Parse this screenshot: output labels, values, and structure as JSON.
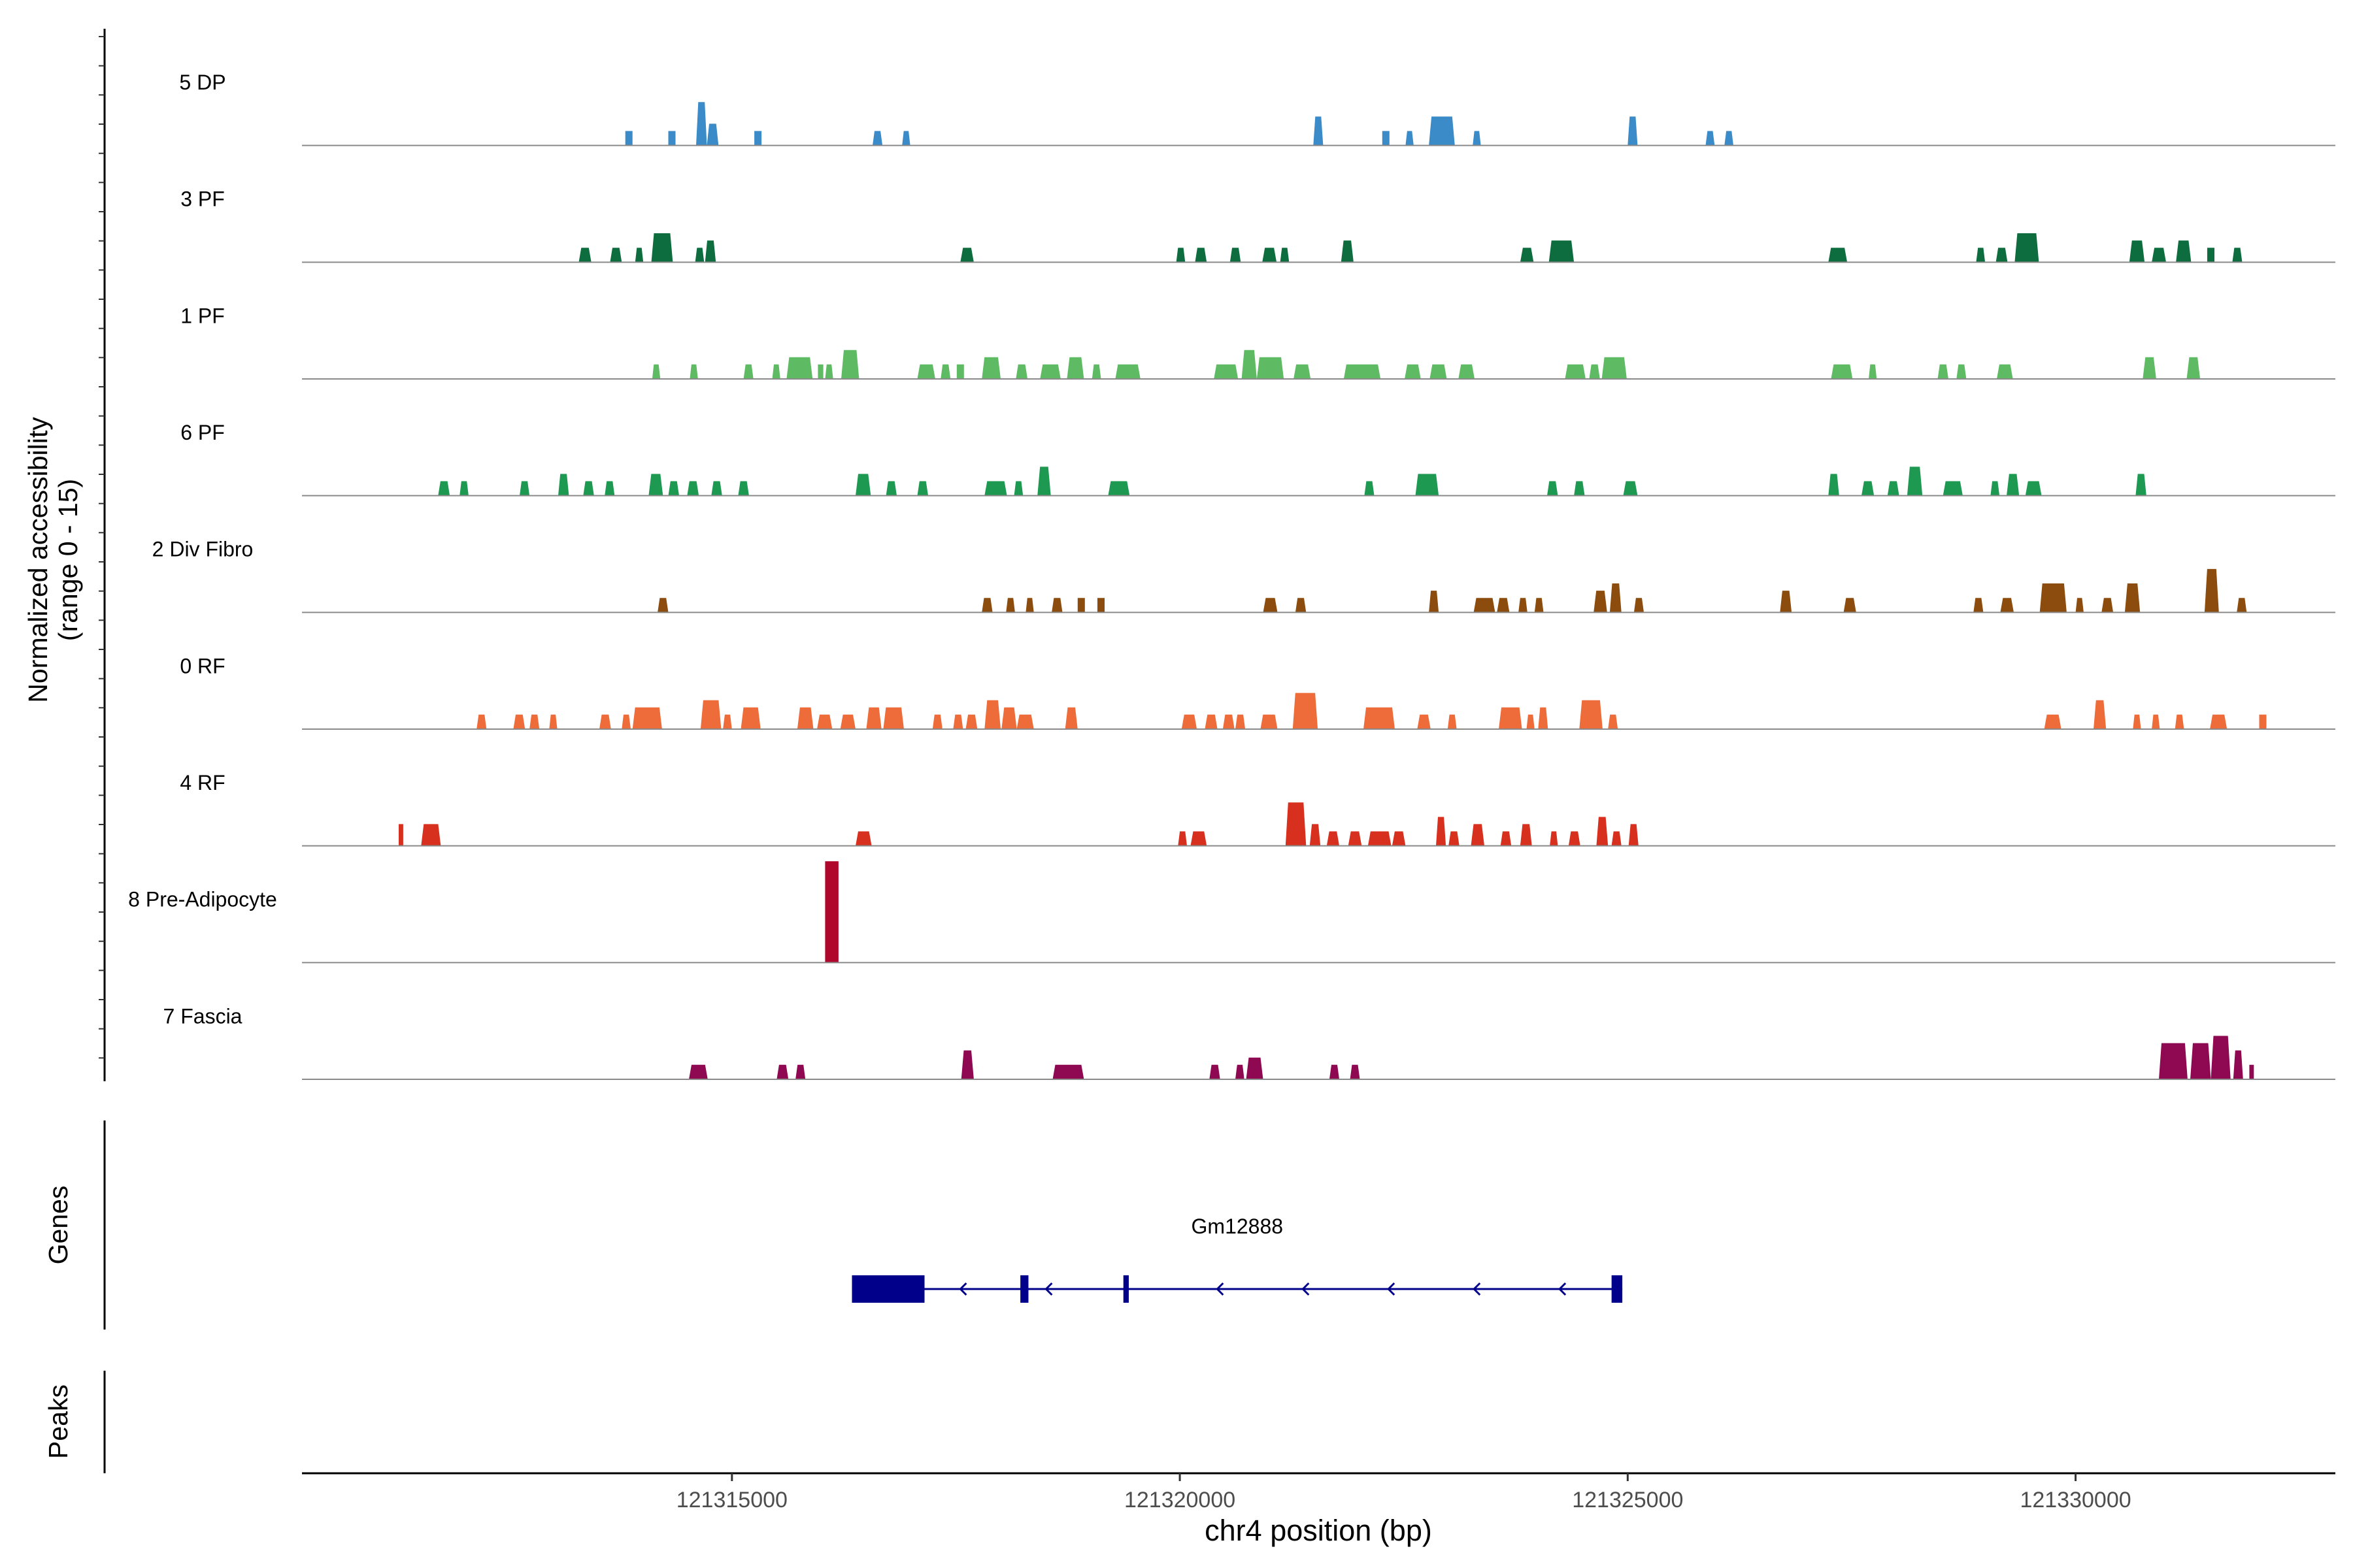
{
  "chart_data": {
    "type": "area",
    "title": "",
    "ylabel_line1": "Normalized accessibility",
    "ylabel_line2": "(range 0 - 15)",
    "xlabel": "chr4 position (bp)",
    "xlim": [
      121310200,
      121332900
    ],
    "ylim": [
      0,
      15
    ],
    "x_ticks": [
      121315000,
      121320000,
      121325000,
      121330000
    ],
    "x_tick_labels": [
      "121315000",
      "121320000",
      "121325000",
      "121330000"
    ],
    "series": [
      {
        "name": "5 DP",
        "color": "#3A8BC8",
        "peaks": [
          [
            121313810,
            121313890,
            2
          ],
          [
            121314290,
            121314370,
            2
          ],
          [
            121314600,
            121314720,
            6
          ],
          [
            121314720,
            121314850,
            3
          ],
          [
            121315250,
            121315330,
            2
          ],
          [
            121316570,
            121316680,
            2
          ],
          [
            121316900,
            121316990,
            2
          ],
          [
            121321490,
            121321600,
            4
          ],
          [
            121322260,
            121322340,
            2
          ],
          [
            121322520,
            121322610,
            2
          ],
          [
            121322780,
            121323070,
            4
          ],
          [
            121323270,
            121323360,
            2
          ],
          [
            121325000,
            121325110,
            4
          ],
          [
            121325870,
            121325970,
            2
          ],
          [
            121326080,
            121326180,
            2
          ]
        ]
      },
      {
        "name": "3 PF",
        "color": "#0E6D3E",
        "peaks": [
          [
            121313290,
            121313430,
            2
          ],
          [
            121313640,
            121313770,
            2
          ],
          [
            121313920,
            121314010,
            2
          ],
          [
            121314100,
            121314340,
            4
          ],
          [
            121314590,
            121314690,
            2
          ],
          [
            121314700,
            121314820,
            3
          ],
          [
            121317550,
            121317700,
            2
          ],
          [
            121319960,
            121320060,
            2
          ],
          [
            121320170,
            121320300,
            2
          ],
          [
            121320560,
            121320680,
            2
          ],
          [
            121320920,
            121321080,
            2
          ],
          [
            121321120,
            121321220,
            2
          ],
          [
            121321800,
            121321940,
            3
          ],
          [
            121323800,
            121323950,
            2
          ],
          [
            121324120,
            121324400,
            3
          ],
          [
            121327240,
            121327450,
            2
          ],
          [
            121328890,
            121328990,
            2
          ],
          [
            121329110,
            121329240,
            2
          ],
          [
            121329320,
            121329590,
            4
          ],
          [
            121330600,
            121330770,
            3
          ],
          [
            121330850,
            121331010,
            2
          ],
          [
            121331120,
            121331290,
            3
          ],
          [
            121331470,
            121331550,
            2
          ],
          [
            121331750,
            121331860,
            2
          ]
        ]
      },
      {
        "name": "1 PF",
        "color": "#5EBB63",
        "peaks": [
          [
            121314110,
            121314200,
            2
          ],
          [
            121314530,
            121314620,
            2
          ],
          [
            121315130,
            121315240,
            2
          ],
          [
            121315450,
            121315540,
            2
          ],
          [
            121315610,
            121315900,
            3
          ],
          [
            121315960,
            121316020,
            2
          ],
          [
            121316040,
            121316130,
            2
          ],
          [
            121316220,
            121316420,
            4
          ],
          [
            121317070,
            121317270,
            2
          ],
          [
            121317330,
            121317440,
            2
          ],
          [
            121317510,
            121317590,
            2
          ],
          [
            121317790,
            121318000,
            3
          ],
          [
            121318170,
            121318300,
            2
          ],
          [
            121318440,
            121318670,
            2
          ],
          [
            121318740,
            121318930,
            3
          ],
          [
            121319020,
            121319120,
            2
          ],
          [
            121319280,
            121319560,
            2
          ],
          [
            121320380,
            121320650,
            2
          ],
          [
            121320690,
            121320860,
            4
          ],
          [
            121320860,
            121321160,
            3
          ],
          [
            121321270,
            121321460,
            2
          ],
          [
            121321830,
            121322240,
            2
          ],
          [
            121322510,
            121322690,
            2
          ],
          [
            121322790,
            121322980,
            2
          ],
          [
            121323110,
            121323290,
            2
          ],
          [
            121324300,
            121324530,
            2
          ],
          [
            121324570,
            121324690,
            2
          ],
          [
            121324710,
            121324990,
            3
          ],
          [
            121327270,
            121327510,
            2
          ],
          [
            121327690,
            121327780,
            2
          ],
          [
            121328460,
            121328580,
            2
          ],
          [
            121328670,
            121328780,
            2
          ],
          [
            121329120,
            121329300,
            2
          ],
          [
            121330750,
            121330900,
            3
          ],
          [
            121331240,
            121331390,
            3
          ]
        ]
      },
      {
        "name": "6 PF",
        "color": "#1E9952",
        "peaks": [
          [
            121311720,
            121311850,
            2
          ],
          [
            121311960,
            121312060,
            2
          ],
          [
            121312630,
            121312740,
            2
          ],
          [
            121313060,
            121313180,
            3
          ],
          [
            121313340,
            121313460,
            2
          ],
          [
            121313580,
            121313690,
            2
          ],
          [
            121314070,
            121314230,
            3
          ],
          [
            121314290,
            121314410,
            2
          ],
          [
            121314500,
            121314630,
            2
          ],
          [
            121314770,
            121314890,
            2
          ],
          [
            121315070,
            121315190,
            2
          ],
          [
            121316380,
            121316550,
            3
          ],
          [
            121316720,
            121316840,
            2
          ],
          [
            121317070,
            121317190,
            2
          ],
          [
            121317820,
            121318070,
            2
          ],
          [
            121318150,
            121318250,
            2
          ],
          [
            121318410,
            121318560,
            4
          ],
          [
            121319200,
            121319440,
            2
          ],
          [
            121322060,
            121322170,
            2
          ],
          [
            121322630,
            121322890,
            3
          ],
          [
            121324100,
            121324220,
            2
          ],
          [
            121324400,
            121324520,
            2
          ],
          [
            121324950,
            121325110,
            2
          ],
          [
            121327240,
            121327360,
            3
          ],
          [
            121327610,
            121327750,
            2
          ],
          [
            121327900,
            121328030,
            2
          ],
          [
            121328120,
            121328290,
            4
          ],
          [
            121328520,
            121328740,
            2
          ],
          [
            121329050,
            121329150,
            2
          ],
          [
            121329230,
            121329370,
            3
          ],
          [
            121329440,
            121329620,
            2
          ],
          [
            121330670,
            121330790,
            3
          ]
        ]
      },
      {
        "name": "2 Div Fibro",
        "color": "#8B4C0D",
        "peaks": [
          [
            121314170,
            121314290,
            2
          ],
          [
            121317790,
            121317910,
            2
          ],
          [
            121318060,
            121318160,
            2
          ],
          [
            121318280,
            121318370,
            2
          ],
          [
            121318570,
            121318690,
            2
          ],
          [
            121318860,
            121318940,
            2
          ],
          [
            121319080,
            121319160,
            2
          ],
          [
            121320930,
            121321090,
            2
          ],
          [
            121321290,
            121321410,
            2
          ],
          [
            121322780,
            121322890,
            3
          ],
          [
            121323280,
            121323520,
            2
          ],
          [
            121323540,
            121323680,
            2
          ],
          [
            121323780,
            121323880,
            2
          ],
          [
            121323960,
            121324060,
            2
          ],
          [
            121324620,
            121324770,
            3
          ],
          [
            121324800,
            121324930,
            4
          ],
          [
            121325070,
            121325180,
            2
          ],
          [
            121326700,
            121326830,
            3
          ],
          [
            121327410,
            121327550,
            2
          ],
          [
            121328860,
            121328970,
            2
          ],
          [
            121329160,
            121329310,
            2
          ],
          [
            121329600,
            121329900,
            4
          ],
          [
            121330000,
            121330090,
            2
          ],
          [
            121330290,
            121330420,
            2
          ],
          [
            121330550,
            121330720,
            4
          ],
          [
            121331440,
            121331600,
            6
          ],
          [
            121331800,
            121331910,
            2
          ]
        ]
      },
      {
        "name": "0 RF",
        "color": "#EE6C3A",
        "peaks": [
          [
            121312150,
            121312260,
            2
          ],
          [
            121312560,
            121312690,
            2
          ],
          [
            121312740,
            121312850,
            2
          ],
          [
            121312960,
            121313050,
            2
          ],
          [
            121313520,
            121313650,
            2
          ],
          [
            121313770,
            121313870,
            2
          ],
          [
            121313890,
            121314220,
            3
          ],
          [
            121314650,
            121314880,
            4
          ],
          [
            121314900,
            121315000,
            2
          ],
          [
            121315100,
            121315320,
            3
          ],
          [
            121315730,
            121315910,
            3
          ],
          [
            121315950,
            121316120,
            2
          ],
          [
            121316210,
            121316380,
            2
          ],
          [
            121316500,
            121316670,
            3
          ],
          [
            121316690,
            121316920,
            3
          ],
          [
            121317240,
            121317350,
            2
          ],
          [
            121317470,
            121317580,
            2
          ],
          [
            121317610,
            121317740,
            2
          ],
          [
            121317820,
            121318000,
            4
          ],
          [
            121318010,
            121318180,
            3
          ],
          [
            121318180,
            121318370,
            2
          ],
          [
            121318720,
            121318860,
            3
          ],
          [
            121320020,
            121320190,
            2
          ],
          [
            121320280,
            121320420,
            2
          ],
          [
            121320480,
            121320610,
            2
          ],
          [
            121320620,
            121320730,
            2
          ],
          [
            121320900,
            121321090,
            2
          ],
          [
            121321260,
            121321540,
            5
          ],
          [
            121322050,
            121322400,
            3
          ],
          [
            121322650,
            121322800,
            2
          ],
          [
            121322990,
            121323090,
            2
          ],
          [
            121323560,
            121323820,
            3
          ],
          [
            121323870,
            121323960,
            2
          ],
          [
            121324000,
            121324110,
            3
          ],
          [
            121324460,
            121324720,
            4
          ],
          [
            121324780,
            121324890,
            2
          ],
          [
            121329650,
            121329840,
            2
          ],
          [
            121330200,
            121330340,
            4
          ],
          [
            121330640,
            121330730,
            2
          ],
          [
            121330850,
            121330940,
            2
          ],
          [
            121331110,
            121331210,
            2
          ],
          [
            121331500,
            121331690,
            2
          ],
          [
            121332050,
            121332130,
            2
          ]
        ]
      },
      {
        "name": "4 RF",
        "color": "#D7301F",
        "peaks": [
          [
            121311280,
            121311330,
            3
          ],
          [
            121311530,
            121311750,
            3
          ],
          [
            121316380,
            121316560,
            2
          ],
          [
            121319980,
            121320080,
            2
          ],
          [
            121320120,
            121320300,
            2
          ],
          [
            121321180,
            121321410,
            6
          ],
          [
            121321450,
            121321570,
            3
          ],
          [
            121321640,
            121321780,
            2
          ],
          [
            121321880,
            121322030,
            2
          ],
          [
            121322100,
            121322360,
            2
          ],
          [
            121322370,
            121322520,
            2
          ],
          [
            121322860,
            121322970,
            4
          ],
          [
            121323000,
            121323120,
            2
          ],
          [
            121323250,
            121323400,
            3
          ],
          [
            121323580,
            121323700,
            2
          ],
          [
            121323800,
            121323930,
            3
          ],
          [
            121324130,
            121324220,
            2
          ],
          [
            121324340,
            121324470,
            2
          ],
          [
            121324650,
            121324780,
            4
          ],
          [
            121324820,
            121324930,
            2
          ],
          [
            121325010,
            121325120,
            3
          ]
        ]
      },
      {
        "name": "8 Pre-Adipocyte",
        "color": "#B0052C",
        "peaks": [
          [
            121316040,
            121316190,
            14
          ]
        ]
      },
      {
        "name": "7 Fascia",
        "color": "#8E0852",
        "peaks": [
          [
            121314520,
            121314730,
            2
          ],
          [
            121315500,
            121315630,
            2
          ],
          [
            121315710,
            121315820,
            2
          ],
          [
            121317560,
            121317700,
            4
          ],
          [
            121318580,
            121318930,
            2
          ],
          [
            121320330,
            121320450,
            2
          ],
          [
            121320620,
            121320720,
            2
          ],
          [
            121320740,
            121320930,
            3
          ],
          [
            121321670,
            121321780,
            2
          ],
          [
            121321900,
            121322010,
            2
          ],
          [
            121330930,
            121331250,
            5
          ],
          [
            121331280,
            121331510,
            5
          ],
          [
            121331510,
            121331730,
            6
          ],
          [
            121331760,
            121331870,
            4
          ],
          [
            121331940,
            121331990,
            2
          ]
        ]
      }
    ],
    "genes_panel_label": "Genes",
    "gene": {
      "name": "Gm12888",
      "strand": "-",
      "color": "#00008B",
      "start": 121316340,
      "end": 121324940,
      "exons": [
        [
          121316340,
          121317150
        ],
        [
          121318220,
          121318310
        ],
        [
          121319370,
          121319430
        ],
        [
          121324820,
          121324940
        ]
      ]
    },
    "peaks_panel_label": "Peaks"
  }
}
